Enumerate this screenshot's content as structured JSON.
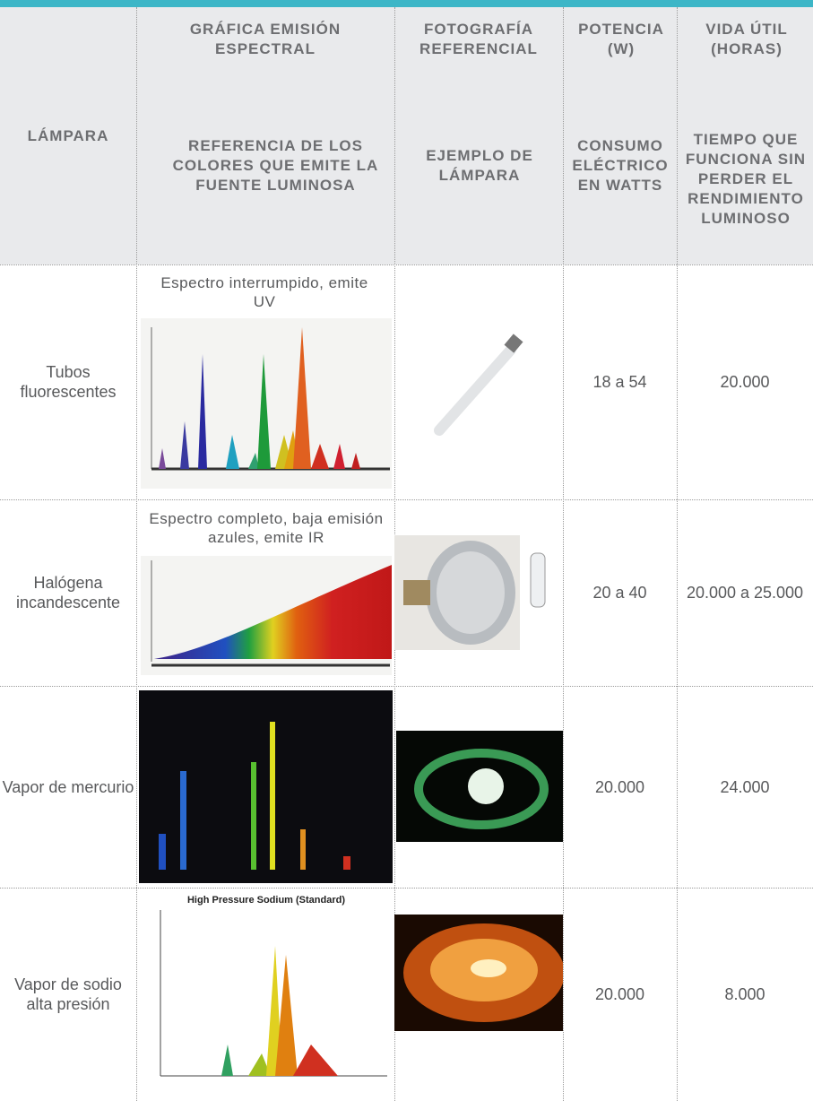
{
  "header": {
    "lamp": "LÁMPARA",
    "row1": [
      "GRÁFICA EMISIÓN ESPECTRAL",
      "FOTOGRAFÍA REFERENCIAL",
      "POTENCIA (W)",
      "VIDA ÚTIL (HORAS)"
    ],
    "row2": [
      "REFERENCIA DE LOS COLORES QUE EMITE LA FUENTE LUMINOSA",
      "EJEMPLO DE LÁMPARA",
      "CONSUMO ELÉCTRICO EN WATTS",
      "TIEMPO QUE FUNCIONA SIN PERDER EL RENDIMIENTO LUMINOSO"
    ]
  },
  "rows": [
    {
      "lamp": "Tubos fluorescentes",
      "spectrum_note": "Espectro interrumpido, emite UV",
      "power": "18 a 54",
      "life": "20.000"
    },
    {
      "lamp": "Halógena incandescente",
      "spectrum_note": "Espectro completo, baja emisión azules, emite IR",
      "power": "20 a 40",
      "life": "20.000 a 25.000"
    },
    {
      "lamp": "Vapor de mercurio",
      "power": "20.000",
      "life": "24.000"
    },
    {
      "lamp": "Vapor de sodio alta presión",
      "spectrum_title": "High Pressure Sodium (Standard)",
      "power": "20.000",
      "life": "8.000"
    }
  ]
}
